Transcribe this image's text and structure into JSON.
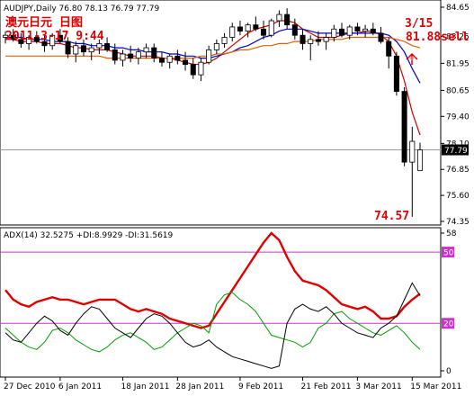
{
  "chart_data": [
    {
      "type": "candlestick",
      "header": "AUDJPY,Daily  76.80 78.13 76.79 77.79",
      "annotations": {
        "title_cn": "澳元日元  日图",
        "timestamp": "2011-3-17 9:44",
        "sell_date": "3/15",
        "sell_label": "81.88sell",
        "low_label": "74.57"
      },
      "current_price": "77.79",
      "ylim": [
        74.35,
        84.65
      ],
      "y_ticks": [
        "84.65",
        "83.25",
        "81.95",
        "80.65",
        "79.40",
        "78.10",
        "76.85",
        "75.60",
        "74.35"
      ],
      "x_tick_labels": [
        "27 Dec 2010",
        "6 Jan 2011",
        "18 Jan 2011",
        "28 Jan 2011",
        "9 Feb 2011",
        "21 Feb 2011",
        "3 Mar 2011",
        "15 Mar 2011"
      ],
      "candles": [
        [
          83.2,
          83.5,
          82.9,
          83.3
        ],
        [
          83.3,
          83.6,
          83.0,
          83.1
        ],
        [
          83.1,
          83.4,
          82.7,
          82.9
        ],
        [
          82.9,
          83.3,
          82.6,
          83.2
        ],
        [
          83.2,
          83.5,
          82.9,
          83.0
        ],
        [
          83.0,
          83.3,
          82.5,
          82.8
        ],
        [
          82.8,
          83.4,
          82.6,
          83.3
        ],
        [
          83.3,
          83.6,
          82.9,
          83.0
        ],
        [
          83.0,
          83.2,
          82.2,
          82.4
        ],
        [
          82.4,
          83.0,
          82.0,
          82.8
        ],
        [
          82.8,
          83.1,
          82.3,
          82.5
        ],
        [
          82.5,
          82.9,
          82.1,
          82.7
        ],
        [
          82.7,
          83.1,
          82.4,
          82.9
        ],
        [
          82.9,
          83.2,
          82.5,
          82.6
        ],
        [
          82.6,
          82.9,
          81.9,
          82.1
        ],
        [
          82.1,
          82.6,
          81.8,
          82.4
        ],
        [
          82.4,
          82.8,
          82.0,
          82.2
        ],
        [
          82.2,
          82.7,
          81.9,
          82.5
        ],
        [
          82.5,
          82.9,
          82.2,
          82.7
        ],
        [
          82.7,
          82.9,
          82.0,
          82.2
        ],
        [
          82.2,
          82.5,
          81.8,
          82.0
        ],
        [
          82.0,
          82.4,
          81.7,
          82.3
        ],
        [
          82.3,
          82.6,
          81.9,
          82.1
        ],
        [
          82.1,
          82.5,
          81.6,
          81.9
        ],
        [
          81.9,
          82.2,
          81.2,
          81.4
        ],
        [
          81.4,
          82.2,
          81.1,
          82.0
        ],
        [
          82.0,
          82.8,
          81.9,
          82.6
        ],
        [
          82.6,
          83.1,
          82.4,
          82.9
        ],
        [
          82.9,
          83.4,
          82.7,
          83.2
        ],
        [
          83.2,
          83.9,
          83.0,
          83.7
        ],
        [
          83.7,
          84.0,
          83.3,
          83.5
        ],
        [
          83.5,
          83.9,
          83.2,
          83.8
        ],
        [
          83.8,
          84.2,
          83.5,
          83.6
        ],
        [
          83.6,
          84.0,
          83.1,
          83.3
        ],
        [
          83.3,
          84.1,
          83.2,
          84.0
        ],
        [
          84.0,
          84.5,
          83.7,
          84.3
        ],
        [
          84.3,
          84.6,
          83.6,
          83.8
        ],
        [
          83.8,
          84.1,
          83.1,
          83.3
        ],
        [
          83.3,
          83.6,
          82.6,
          82.9
        ],
        [
          82.9,
          83.3,
          82.1,
          83.1
        ],
        [
          83.1,
          83.5,
          82.8,
          83.0
        ],
        [
          83.0,
          83.4,
          82.6,
          83.2
        ],
        [
          83.2,
          83.8,
          83.0,
          83.6
        ],
        [
          83.6,
          83.9,
          83.2,
          83.3
        ],
        [
          83.3,
          83.8,
          83.1,
          83.7
        ],
        [
          83.7,
          83.9,
          83.3,
          83.5
        ],
        [
          83.5,
          83.8,
          83.2,
          83.6
        ],
        [
          83.6,
          83.9,
          83.3,
          83.4
        ],
        [
          83.4,
          83.7,
          82.9,
          83.0
        ],
        [
          83.0,
          83.2,
          81.7,
          82.3
        ],
        [
          82.3,
          82.5,
          80.4,
          80.6
        ],
        [
          80.6,
          80.8,
          77.0,
          77.2
        ],
        [
          77.2,
          78.9,
          74.57,
          78.2
        ],
        [
          76.8,
          78.13,
          76.79,
          77.79
        ]
      ],
      "series": [
        {
          "name": "MA fast",
          "color": "#cc0000",
          "values": [
            83.1,
            83.1,
            83.0,
            83.0,
            83.0,
            82.9,
            82.9,
            82.9,
            82.8,
            82.7,
            82.7,
            82.6,
            82.6,
            82.6,
            82.5,
            82.4,
            82.3,
            82.3,
            82.3,
            82.3,
            82.2,
            82.2,
            82.1,
            82.0,
            81.9,
            81.9,
            82.0,
            82.2,
            82.5,
            82.8,
            83.1,
            83.4,
            83.6,
            83.7,
            83.8,
            84.0,
            84.0,
            83.9,
            83.6,
            83.4,
            83.2,
            83.2,
            83.2,
            83.3,
            83.4,
            83.4,
            83.5,
            83.5,
            83.3,
            83.0,
            82.3,
            81.1,
            79.6,
            78.5
          ]
        },
        {
          "name": "MA mid",
          "color": "#0000cc",
          "values": [
            83.2,
            83.2,
            83.2,
            83.1,
            83.1,
            83.1,
            83.0,
            83.0,
            83.0,
            82.9,
            82.9,
            82.8,
            82.8,
            82.8,
            82.7,
            82.7,
            82.6,
            82.6,
            82.5,
            82.5,
            82.5,
            82.4,
            82.4,
            82.3,
            82.3,
            82.2,
            82.2,
            82.3,
            82.4,
            82.5,
            82.7,
            82.8,
            83.0,
            83.2,
            83.3,
            83.5,
            83.6,
            83.6,
            83.6,
            83.5,
            83.4,
            83.4,
            83.4,
            83.4,
            83.4,
            83.4,
            83.4,
            83.4,
            83.4,
            83.3,
            83.0,
            82.5,
            81.7,
            81.0
          ]
        },
        {
          "name": "MA slow",
          "color": "#e06000",
          "values": [
            82.3,
            82.3,
            82.3,
            82.3,
            82.3,
            82.3,
            82.3,
            82.3,
            82.3,
            82.3,
            82.3,
            82.3,
            82.3,
            82.2,
            82.2,
            82.2,
            82.2,
            82.2,
            82.2,
            82.2,
            82.2,
            82.2,
            82.2,
            82.2,
            82.2,
            82.3,
            82.3,
            82.4,
            82.4,
            82.5,
            82.6,
            82.6,
            82.7,
            82.8,
            82.8,
            82.9,
            82.9,
            83.0,
            83.0,
            83.0,
            83.1,
            83.1,
            83.1,
            83.1,
            83.2,
            83.2,
            83.2,
            83.2,
            83.2,
            83.2,
            83.1,
            83.0,
            82.8,
            82.7
          ]
        }
      ]
    },
    {
      "type": "line",
      "header": "ADX(14) 32.5275 +DI:8.9929 -DI:31.5619",
      "ylim": [
        0,
        58
      ],
      "y_ticks": [
        "58",
        "50",
        "20",
        "0"
      ],
      "levels": [
        50,
        20
      ],
      "series": [
        {
          "name": "ADX",
          "color": "#e00000",
          "values": [
            34,
            30,
            28,
            27,
            29,
            30,
            31,
            30,
            30,
            29,
            28,
            29,
            30,
            30,
            30,
            28,
            26,
            25,
            26,
            25,
            24,
            22,
            21,
            20,
            19,
            18,
            19,
            24,
            29,
            34,
            39,
            44,
            49,
            54,
            58,
            55,
            48,
            42,
            38,
            37,
            36,
            34,
            31,
            28,
            27,
            26,
            27,
            25,
            22,
            22,
            23,
            27,
            30,
            32.5
          ]
        },
        {
          "name": "+DI",
          "color": "#00a000",
          "values": [
            18,
            15,
            12,
            10,
            9,
            12,
            17,
            18,
            16,
            13,
            11,
            9,
            8,
            10,
            13,
            15,
            16,
            14,
            12,
            9,
            10,
            13,
            16,
            18,
            20,
            19,
            16,
            28,
            32,
            33,
            30,
            28,
            25,
            20,
            15,
            14,
            13,
            12,
            10,
            12,
            18,
            20,
            24,
            25,
            22,
            20,
            18,
            16,
            15,
            17,
            19,
            16,
            12,
            9
          ]
        },
        {
          "name": "-DI",
          "color": "#000000",
          "values": [
            16,
            13,
            12,
            16,
            20,
            23,
            21,
            17,
            15,
            20,
            24,
            27,
            26,
            22,
            18,
            16,
            14,
            18,
            22,
            24,
            23,
            20,
            16,
            12,
            10,
            11,
            13,
            10,
            8,
            6,
            5,
            4,
            3,
            2,
            1,
            2,
            20,
            26,
            28,
            26,
            25,
            27,
            24,
            20,
            18,
            16,
            15,
            14,
            18,
            20,
            23,
            30,
            37,
            31.6
          ]
        }
      ]
    }
  ]
}
